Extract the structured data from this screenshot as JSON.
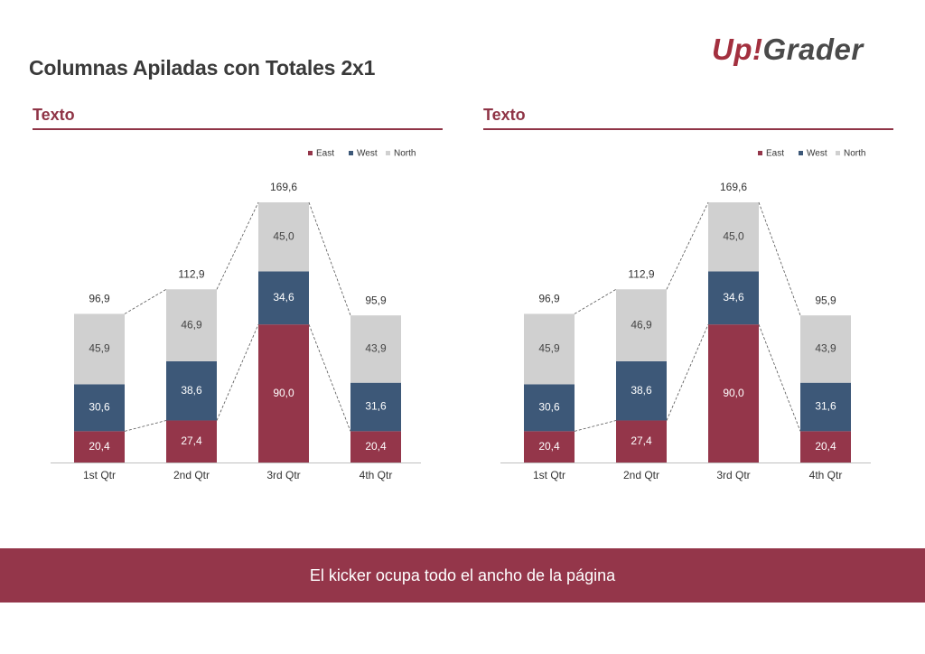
{
  "page": {
    "title": "Columnas Apiladas con Totales  2x1",
    "logo": {
      "part1": "Up",
      "bang": "!",
      "part2": "Grader"
    },
    "kicker": "El kicker ocupa todo el ancho de la página"
  },
  "panels": [
    {
      "title": "Texto"
    },
    {
      "title": "Texto"
    }
  ],
  "colors": {
    "East": "#94364a",
    "West": "#3d5878",
    "North": "#d0d0d0",
    "accent": "#8f3446"
  },
  "chart_data": [
    {
      "type": "bar",
      "stacked": true,
      "title": "",
      "xlabel": "",
      "ylabel": "",
      "legend_position": "top-right",
      "grid": false,
      "categories": [
        "1st Qtr",
        "2nd Qtr",
        "3rd Qtr",
        "4th Qtr"
      ],
      "series": [
        {
          "name": "East",
          "values": [
            20.4,
            27.4,
            90.0,
            20.4
          ],
          "labels": [
            "20,4",
            "27,4",
            "90,0",
            "20,4"
          ]
        },
        {
          "name": "West",
          "values": [
            30.6,
            38.6,
            34.6,
            31.6
          ],
          "labels": [
            "30,6",
            "38,6",
            "34,6",
            "31,6"
          ]
        },
        {
          "name": "North",
          "values": [
            45.9,
            46.9,
            45.0,
            43.9
          ],
          "labels": [
            "45,9",
            "46,9",
            "45,0",
            "43,9"
          ]
        }
      ],
      "totals": [
        96.9,
        112.9,
        169.6,
        95.9
      ],
      "total_labels": [
        "96,9",
        "112,9",
        "169,6",
        "95,9"
      ],
      "ylim": [
        0,
        169.6
      ]
    },
    {
      "type": "bar",
      "stacked": true,
      "title": "",
      "xlabel": "",
      "ylabel": "",
      "legend_position": "top-right",
      "grid": false,
      "categories": [
        "1st Qtr",
        "2nd Qtr",
        "3rd Qtr",
        "4th Qtr"
      ],
      "series": [
        {
          "name": "East",
          "values": [
            20.4,
            27.4,
            90.0,
            20.4
          ],
          "labels": [
            "20,4",
            "27,4",
            "90,0",
            "20,4"
          ]
        },
        {
          "name": "West",
          "values": [
            30.6,
            38.6,
            34.6,
            31.6
          ],
          "labels": [
            "30,6",
            "38,6",
            "34,6",
            "31,6"
          ]
        },
        {
          "name": "North",
          "values": [
            45.9,
            46.9,
            45.0,
            43.9
          ],
          "labels": [
            "45,9",
            "46,9",
            "45,0",
            "43,9"
          ]
        }
      ],
      "totals": [
        96.9,
        112.9,
        169.6,
        95.9
      ],
      "total_labels": [
        "96,9",
        "112,9",
        "169,6",
        "95,9"
      ],
      "ylim": [
        0,
        169.6
      ]
    }
  ]
}
